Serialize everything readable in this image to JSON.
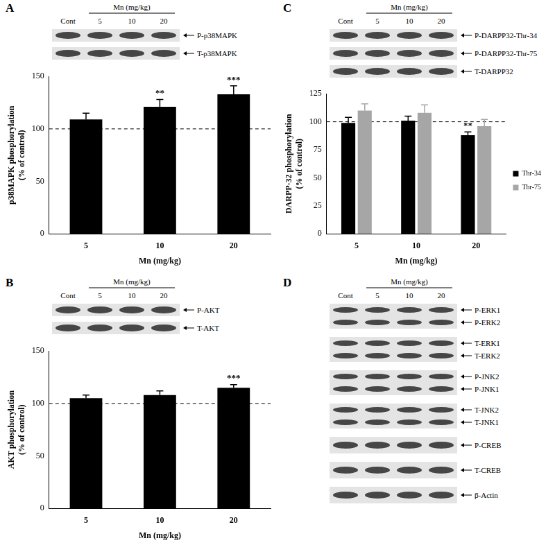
{
  "chart_data": [
    {
      "type": "bar",
      "y_label": [
        "p38MAPK phosphorylation",
        "(% of control)"
      ],
      "x_label": "Mn (mg/kg)",
      "categories": [
        "5",
        "10",
        "20"
      ],
      "values": [
        109,
        121,
        133
      ],
      "errors": [
        6,
        7,
        8
      ],
      "significance": [
        null,
        "**",
        "***"
      ],
      "color": "#000000",
      "ylim": [
        0,
        150
      ],
      "yticks": [
        0,
        50,
        100,
        150
      ],
      "reference_line": 100,
      "grid": false
    },
    {
      "type": "bar",
      "y_label": [
        "AKT phosphorylation",
        "(% of control)"
      ],
      "x_label": "Mn (mg/kg)",
      "categories": [
        "5",
        "10",
        "20"
      ],
      "values": [
        105,
        108,
        115
      ],
      "errors": [
        3,
        4,
        3
      ],
      "significance": [
        null,
        null,
        "***"
      ],
      "color": "#000000",
      "ylim": [
        0,
        150
      ],
      "yticks": [
        0,
        50,
        100,
        150
      ],
      "reference_line": 100,
      "grid": false
    },
    {
      "type": "bar",
      "y_label": [
        "DARPP-32 phosphorylation",
        "(% of control)"
      ],
      "x_label": "Mn (mg/kg)",
      "categories": [
        "5",
        "10",
        "20"
      ],
      "series": [
        {
          "name": "Thr-34",
          "color": "#000000",
          "values": [
            99,
            101,
            88
          ],
          "errors": [
            5,
            4,
            3
          ],
          "significance": [
            null,
            null,
            "**"
          ]
        },
        {
          "name": "Thr-75",
          "color": "#a6a6a6",
          "values": [
            110,
            108,
            96
          ],
          "errors": [
            6,
            7,
            6
          ],
          "significance": [
            null,
            null,
            null
          ]
        }
      ],
      "ylim": [
        0,
        125
      ],
      "yticks": [
        0,
        25,
        50,
        75,
        100,
        125
      ],
      "reference_line": 100,
      "grid": false,
      "legend": "right"
    }
  ],
  "blots": [
    {
      "panel": "A",
      "header": {
        "control": "Cont",
        "group": "Mn (mg/kg)",
        "doses": [
          "5",
          "10",
          "20"
        ]
      },
      "strips": [
        [
          "P-p38MAPK"
        ],
        [
          "T-p38MAPK"
        ]
      ]
    },
    {
      "panel": "B",
      "header": {
        "control": "Cont",
        "group": "Mn (mg/kg)",
        "doses": [
          "5",
          "10",
          "20"
        ]
      },
      "strips": [
        [
          "P-AKT"
        ],
        [
          "T-AKT"
        ]
      ]
    },
    {
      "panel": "C",
      "header": {
        "control": "Cont",
        "group": "Mn (mg/kg)",
        "doses": [
          "5",
          "10",
          "20"
        ]
      },
      "strips": [
        [
          "P-DARPP32-Thr-34"
        ],
        [
          "P-DARPP32-Thr-75"
        ],
        [
          "T-DARPP32"
        ]
      ]
    },
    {
      "panel": "D",
      "header": {
        "control": "Cont",
        "group": "Mn (mg/kg)",
        "doses": [
          "5",
          "10",
          "20"
        ]
      },
      "strips": [
        [
          "P-ERK1",
          "P-ERK2"
        ],
        [
          "T-ERK1",
          "T-ERK2"
        ],
        [
          "P-JNK2",
          "P-JNK1"
        ],
        [
          "T-JNK2",
          "T-JNK1"
        ],
        [
          "P-CREB"
        ],
        [
          "T-CREB"
        ],
        [
          "β-Actin"
        ]
      ]
    }
  ]
}
